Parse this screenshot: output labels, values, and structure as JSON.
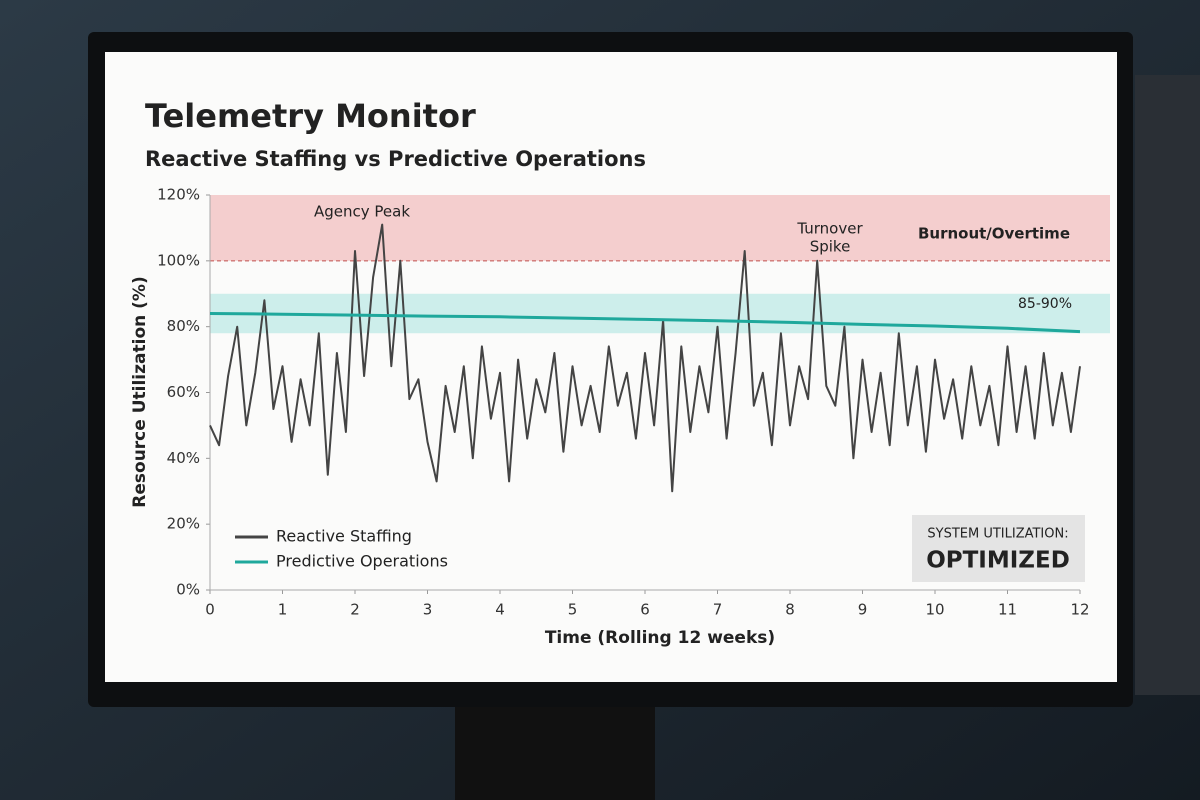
{
  "chart_data": {
    "type": "line",
    "title": "Telemetry Monitor",
    "subtitle": "Reactive Staffing vs Predictive Operations",
    "x_label": "Time (Rolling 12 weeks)",
    "y_label": "Resource Utilization (%)",
    "xlim": [
      0,
      12
    ],
    "xticks": [
      0,
      1,
      2,
      3,
      4,
      5,
      6,
      7,
      8,
      9,
      10,
      11,
      12
    ],
    "ylim": [
      0,
      120
    ],
    "yticks": [
      {
        "value": 0,
        "label": "0%"
      },
      {
        "value": 20,
        "label": "20%"
      },
      {
        "value": 40,
        "label": "40%"
      },
      {
        "value": 60,
        "label": "60%"
      },
      {
        "value": 80,
        "label": "80%"
      },
      {
        "value": 100,
        "label": "100%"
      },
      {
        "value": 120,
        "label": "120%"
      }
    ],
    "grid": false,
    "bands": [
      {
        "label": "Burnout/Overtime",
        "range": [
          100,
          120
        ],
        "color": "#f2c6c6",
        "line_color": "#c0504d"
      },
      {
        "label": "85-90%",
        "range": [
          78,
          90
        ],
        "color": "#c4ebe8"
      }
    ],
    "annotations": [
      {
        "lines": [
          "Agency Peak"
        ]
      },
      {
        "lines": [
          "Turnover",
          "Spike"
        ]
      }
    ],
    "status_box": {
      "label": "SYSTEM UTILIZATION:",
      "value": "OPTIMIZED"
    },
    "series": [
      {
        "name": "Reactive Staffing",
        "color": "#444444",
        "x": [
          0,
          0.125,
          0.25,
          0.375,
          0.5,
          0.625,
          0.75,
          0.875,
          1,
          1.125,
          1.25,
          1.375,
          1.5,
          1.625,
          1.75,
          1.875,
          2,
          2.125,
          2.25,
          2.375,
          2.5,
          2.625,
          2.75,
          2.875,
          3,
          3.125,
          3.25,
          3.375,
          3.5,
          3.625,
          3.75,
          3.875,
          4,
          4.125,
          4.25,
          4.375,
          4.5,
          4.625,
          4.75,
          4.875,
          5,
          5.125,
          5.25,
          5.375,
          5.5,
          5.625,
          5.75,
          5.875,
          6,
          6.125,
          6.25,
          6.375,
          6.5,
          6.625,
          6.75,
          6.875,
          7,
          7.125,
          7.25,
          7.375,
          7.5,
          7.625,
          7.75,
          7.875,
          8,
          8.125,
          8.25,
          8.375,
          8.5,
          8.625,
          8.75,
          8.875,
          9,
          9.125,
          9.25,
          9.375,
          9.5,
          9.625,
          9.75,
          9.875,
          10,
          10.125,
          10.25,
          10.375,
          10.5,
          10.625,
          10.75,
          10.875,
          11,
          11.125,
          11.25,
          11.375,
          11.5,
          11.625,
          11.75,
          11.875,
          12
        ],
        "values": [
          50,
          44,
          65,
          80,
          50,
          66,
          88,
          55,
          68,
          45,
          64,
          50,
          78,
          35,
          72,
          48,
          103,
          65,
          95,
          111,
          68,
          100,
          58,
          64,
          45,
          33,
          62,
          48,
          68,
          40,
          74,
          52,
          66,
          33,
          70,
          46,
          64,
          54,
          72,
          42,
          68,
          50,
          62,
          48,
          74,
          56,
          66,
          46,
          72,
          50,
          82,
          30,
          74,
          48,
          68,
          54,
          80,
          46,
          72,
          103,
          56,
          66,
          44,
          78,
          50,
          68,
          58,
          100,
          62,
          56,
          80,
          40,
          70,
          48,
          66,
          44,
          78,
          50,
          68,
          42,
          70,
          52,
          64,
          46,
          68,
          50,
          62,
          44,
          74,
          48,
          68,
          46,
          72,
          50,
          66,
          48,
          68
        ]
      },
      {
        "name": "Predictive Operations",
        "color": "#1fa89c",
        "x": [
          0,
          1,
          2,
          3,
          4,
          5,
          6,
          7,
          8,
          9,
          10,
          11,
          12
        ],
        "values": [
          84,
          83.8,
          83.5,
          83.2,
          83,
          82.6,
          82.2,
          81.8,
          81.3,
          80.7,
          80.2,
          79.5,
          78.5
        ]
      }
    ]
  }
}
